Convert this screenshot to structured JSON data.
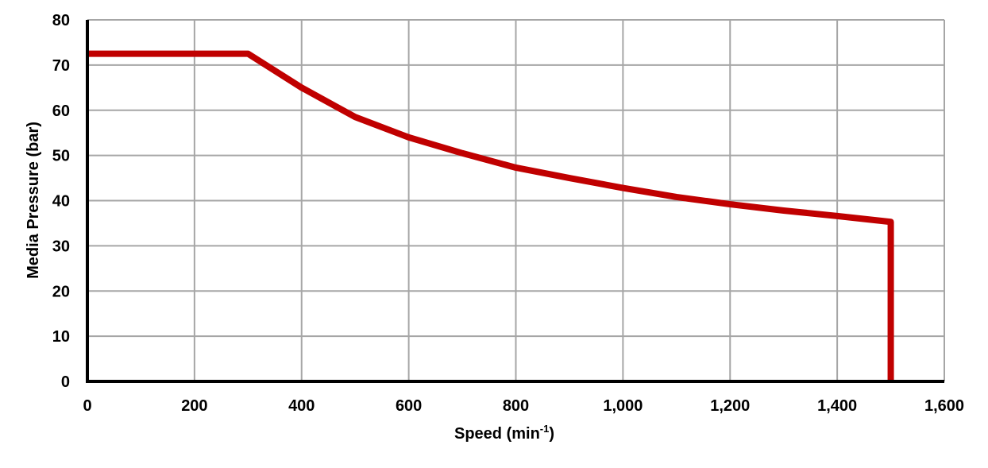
{
  "chart_data": {
    "type": "line",
    "title": "",
    "xlabel": "Speed (min",
    "xlabel_sup": "-1",
    "xlabel_suffix": ")",
    "ylabel": "Media Pressure (bar)",
    "xlim": [
      0,
      1600
    ],
    "ylim": [
      0,
      80
    ],
    "x_ticks": [
      "0",
      "200",
      "400",
      "600",
      "800",
      "1,000",
      "1,200",
      "1,400",
      "1,600"
    ],
    "y_ticks": [
      "0",
      "10",
      "20",
      "30",
      "40",
      "50",
      "60",
      "70",
      "80"
    ],
    "grid": true,
    "series": [
      {
        "color": "#C00000",
        "x": [
          0,
          300,
          400,
          500,
          600,
          700,
          800,
          900,
          1000,
          1100,
          1200,
          1300,
          1400,
          1500,
          1500
        ],
        "y": [
          72.5,
          72.5,
          65,
          58.5,
          54,
          50.5,
          47.3,
          45,
          42.8,
          40.8,
          39.2,
          37.8,
          36.6,
          35.3,
          0
        ]
      }
    ]
  }
}
